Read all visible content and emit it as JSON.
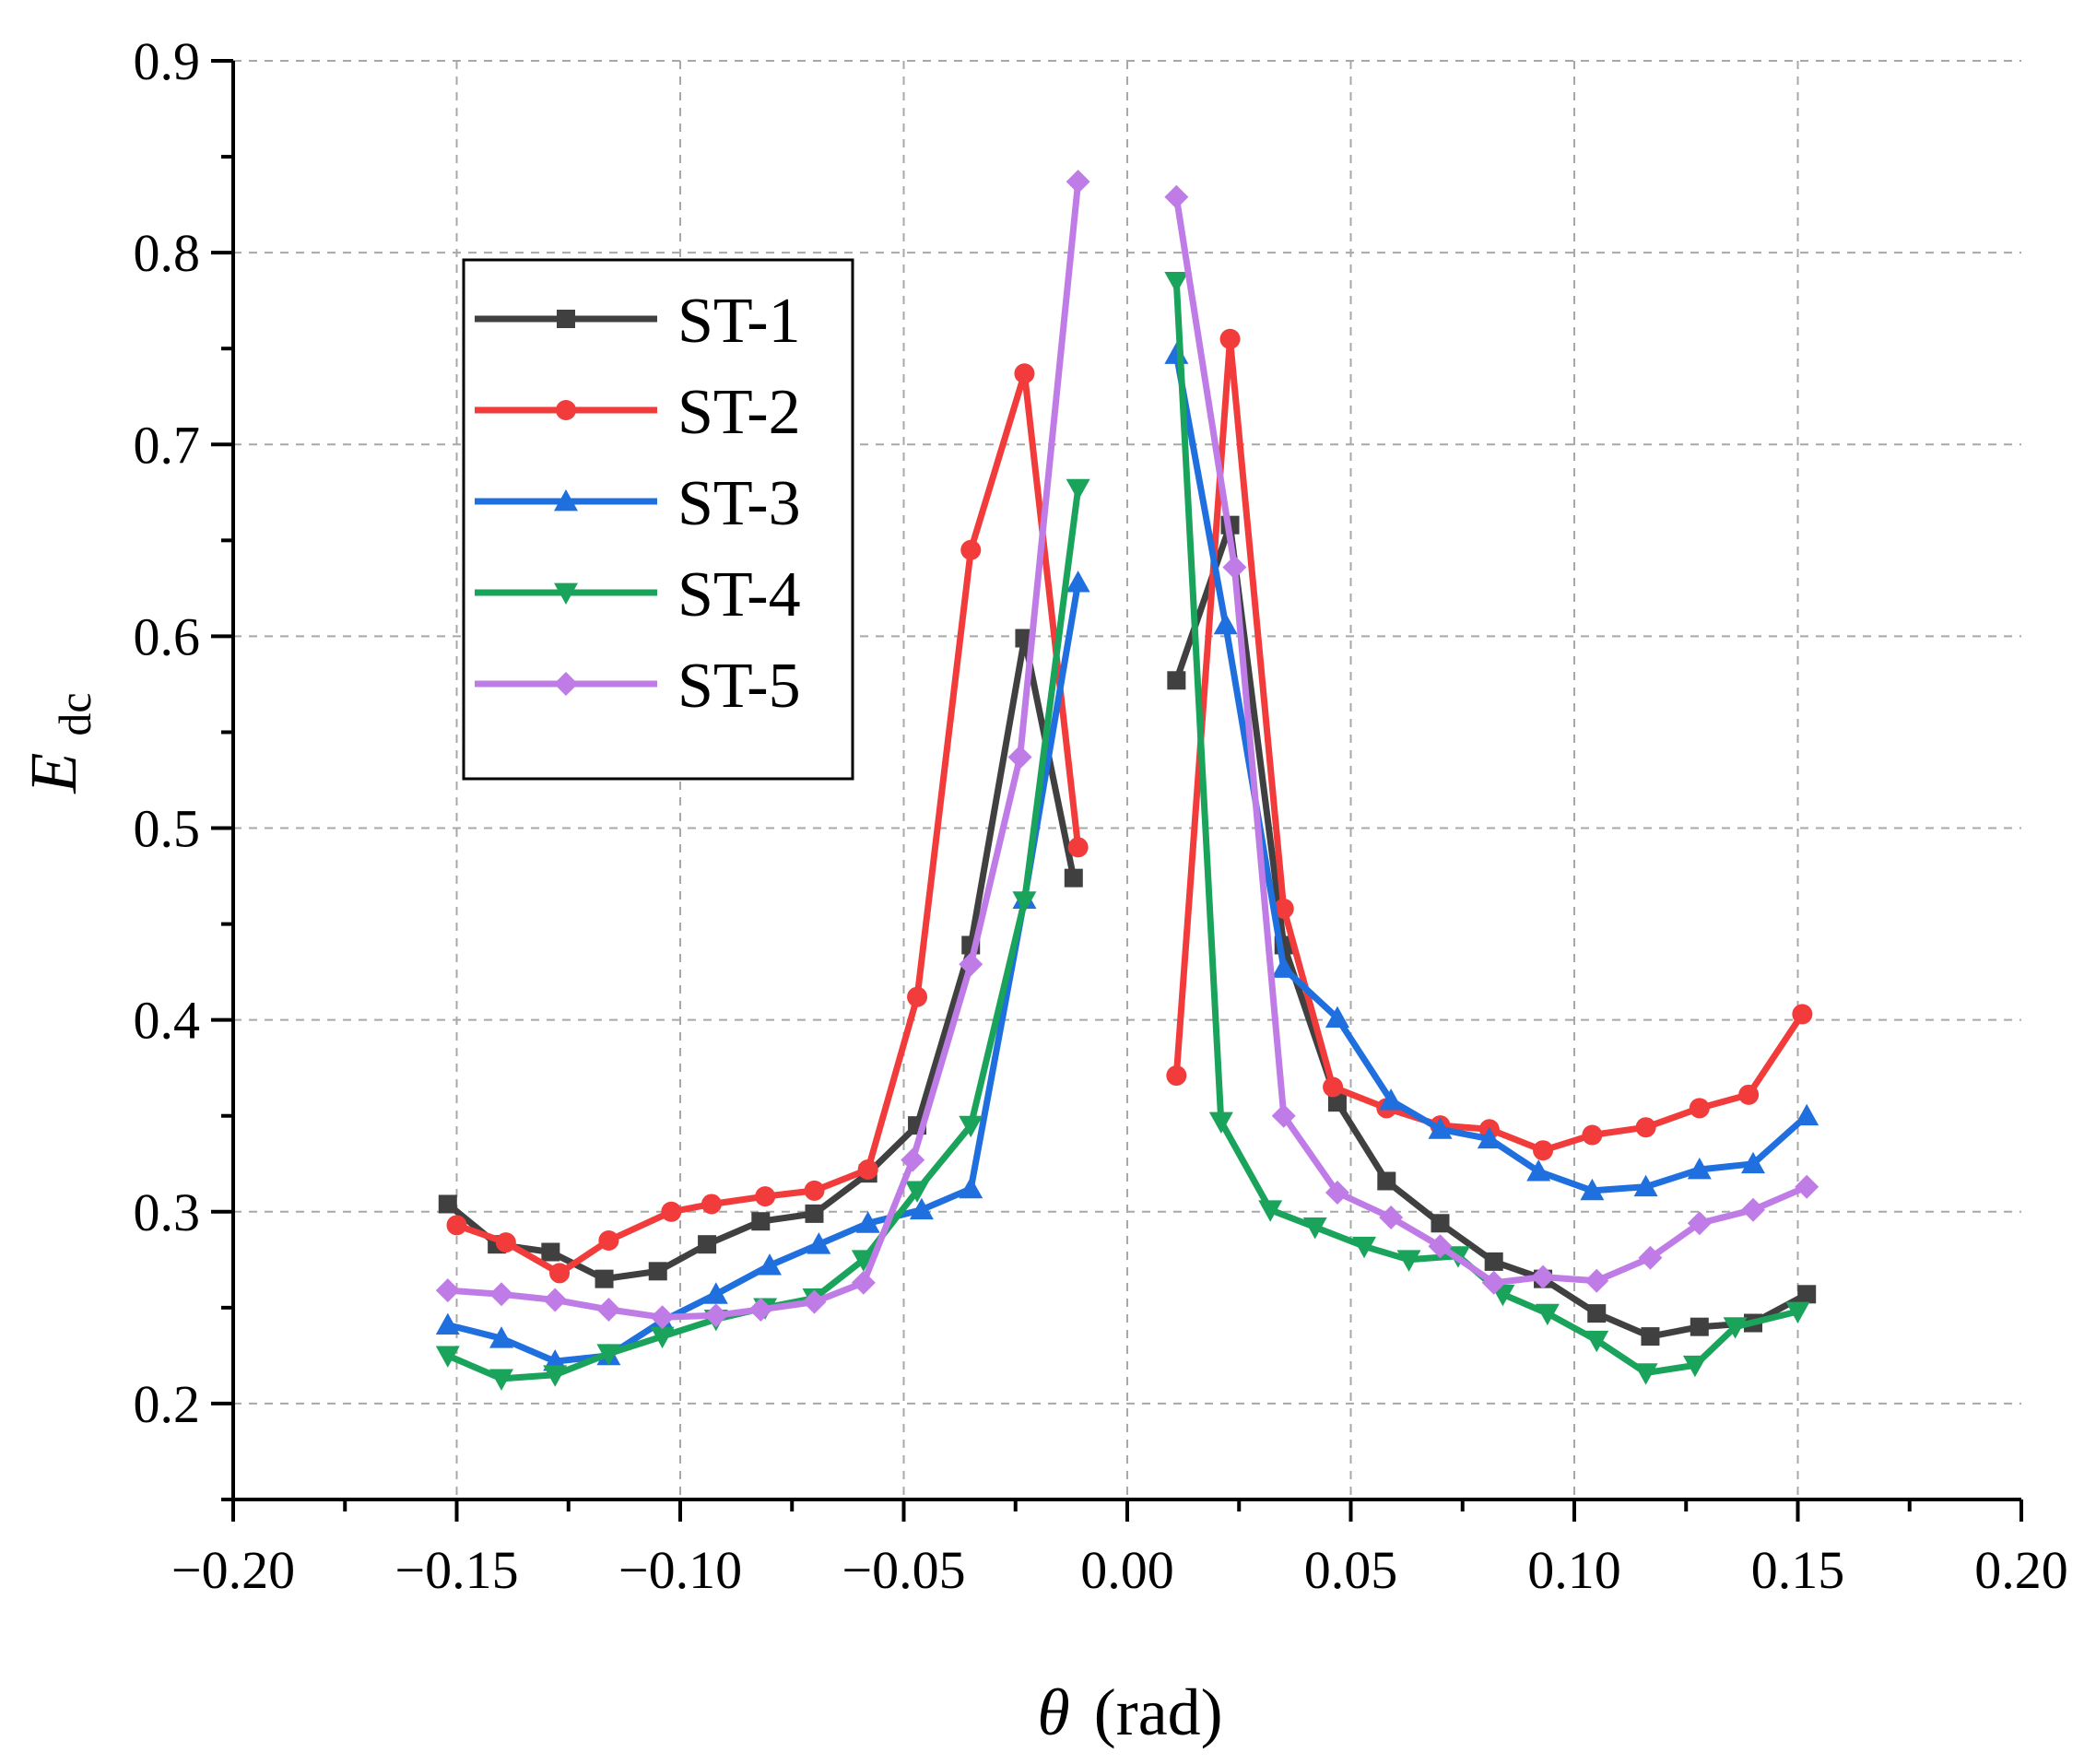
{
  "chart_data": {
    "type": "line",
    "title": "",
    "xlabel_symbol": "θ",
    "xlabel_unit": "(rad)",
    "ylabel_symbol": "E",
    "ylabel_subscript": "dc",
    "xlim": [
      -0.2,
      0.2
    ],
    "ylim": [
      0.15,
      0.9
    ],
    "x_ticks": [
      -0.2,
      -0.15,
      -0.1,
      -0.05,
      0.0,
      0.05,
      0.1,
      0.15,
      0.2
    ],
    "x_tick_labels": [
      "−0.20",
      "−0.15",
      "−0.10",
      "−0.05",
      "0.00",
      "0.05",
      "0.10",
      "0.15",
      "0.20"
    ],
    "y_ticks": [
      0.2,
      0.3,
      0.4,
      0.5,
      0.6,
      0.7,
      0.8,
      0.9
    ],
    "y_tick_labels": [
      "0.2",
      "0.3",
      "0.4",
      "0.5",
      "0.6",
      "0.7",
      "0.8",
      "0.9"
    ],
    "grid": true,
    "legend_position": "upper-left",
    "series": [
      {
        "name": "ST-1",
        "color": "#404040",
        "marker": "square",
        "segments": [
          {
            "x": [
              -0.152,
              -0.141,
              -0.129,
              -0.117,
              -0.105,
              -0.094,
              -0.082,
              -0.07,
              -0.058,
              -0.047,
              -0.035,
              -0.023,
              -0.012
            ],
            "y": [
              0.304,
              0.283,
              0.279,
              0.265,
              0.269,
              0.283,
              0.295,
              0.299,
              0.32,
              0.345,
              0.439,
              0.599,
              0.474
            ]
          },
          {
            "x": [
              0.011,
              0.023,
              0.035,
              0.047,
              0.058,
              0.07,
              0.082,
              0.093,
              0.105,
              0.117,
              0.128,
              0.14,
              0.152
            ],
            "y": [
              0.577,
              0.658,
              0.439,
              0.357,
              0.316,
              0.294,
              0.274,
              0.265,
              0.247,
              0.235,
              0.24,
              0.242,
              0.257
            ]
          }
        ]
      },
      {
        "name": "ST-2",
        "color": "#f23b3b",
        "marker": "circle",
        "segments": [
          {
            "x": [
              -0.15,
              -0.139,
              -0.127,
              -0.116,
              -0.102,
              -0.093,
              -0.081,
              -0.07,
              -0.058,
              -0.047,
              -0.035,
              -0.023,
              -0.011
            ],
            "y": [
              0.293,
              0.284,
              0.268,
              0.285,
              0.3,
              0.304,
              0.308,
              0.311,
              0.322,
              0.412,
              0.645,
              0.737,
              0.49
            ]
          },
          {
            "x": [
              0.011,
              0.023,
              0.035,
              0.046,
              0.058,
              0.07,
              0.081,
              0.093,
              0.104,
              0.116,
              0.128,
              0.139,
              0.151
            ],
            "y": [
              0.371,
              0.755,
              0.458,
              0.365,
              0.354,
              0.345,
              0.343,
              0.332,
              0.34,
              0.344,
              0.354,
              0.361,
              0.403
            ]
          }
        ]
      },
      {
        "name": "ST-3",
        "color": "#1f6fde",
        "marker": "triangle-up",
        "segments": [
          {
            "x": [
              -0.152,
              -0.14,
              -0.128,
              -0.116,
              -0.104,
              -0.092,
              -0.08,
              -0.069,
              -0.058,
              -0.046,
              -0.035,
              -0.023,
              -0.011
            ],
            "y": [
              0.241,
              0.234,
              0.222,
              0.225,
              0.243,
              0.257,
              0.272,
              0.283,
              0.294,
              0.301,
              0.312,
              0.463,
              0.628
            ]
          },
          {
            "x": [
              0.011,
              0.022,
              0.035,
              0.047,
              0.059,
              0.07,
              0.081,
              0.092,
              0.104,
              0.116,
              0.128,
              0.14,
              0.152
            ],
            "y": [
              0.747,
              0.606,
              0.427,
              0.401,
              0.358,
              0.343,
              0.338,
              0.321,
              0.311,
              0.313,
              0.322,
              0.325,
              0.35
            ]
          }
        ]
      },
      {
        "name": "ST-4",
        "color": "#1aa35a",
        "marker": "triangle-down",
        "segments": [
          {
            "x": [
              -0.152,
              -0.14,
              -0.128,
              -0.116,
              -0.104,
              -0.092,
              -0.081,
              -0.07,
              -0.059,
              -0.047,
              -0.035,
              -0.023,
              -0.011
            ],
            "y": [
              0.225,
              0.213,
              0.215,
              0.226,
              0.235,
              0.244,
              0.25,
              0.255,
              0.275,
              0.311,
              0.345,
              0.462,
              0.677
            ]
          },
          {
            "x": [
              0.011,
              0.021,
              0.032,
              0.042,
              0.053,
              0.063,
              0.074,
              0.084,
              0.094,
              0.105,
              0.116,
              0.127,
              0.136,
              0.15
            ],
            "y": [
              0.785,
              0.347,
              0.301,
              0.292,
              0.282,
              0.275,
              0.277,
              0.257,
              0.247,
              0.233,
              0.216,
              0.22,
              0.24,
              0.248
            ]
          }
        ]
      },
      {
        "name": "ST-5",
        "color": "#bf7ce6",
        "marker": "diamond",
        "segments": [
          {
            "x": [
              -0.152,
              -0.14,
              -0.128,
              -0.116,
              -0.104,
              -0.092,
              -0.082,
              -0.07,
              -0.059,
              -0.048,
              -0.035,
              -0.024,
              -0.011
            ],
            "y": [
              0.259,
              0.257,
              0.254,
              0.249,
              0.245,
              0.246,
              0.249,
              0.253,
              0.263,
              0.327,
              0.429,
              0.537,
              0.837
            ]
          },
          {
            "x": [
              0.011,
              0.024,
              0.035,
              0.047,
              0.059,
              0.07,
              0.082,
              0.093,
              0.105,
              0.117,
              0.128,
              0.14,
              0.152
            ],
            "y": [
              0.829,
              0.636,
              0.35,
              0.31,
              0.297,
              0.282,
              0.263,
              0.266,
              0.264,
              0.276,
              0.294,
              0.301,
              0.313
            ]
          }
        ]
      }
    ]
  }
}
